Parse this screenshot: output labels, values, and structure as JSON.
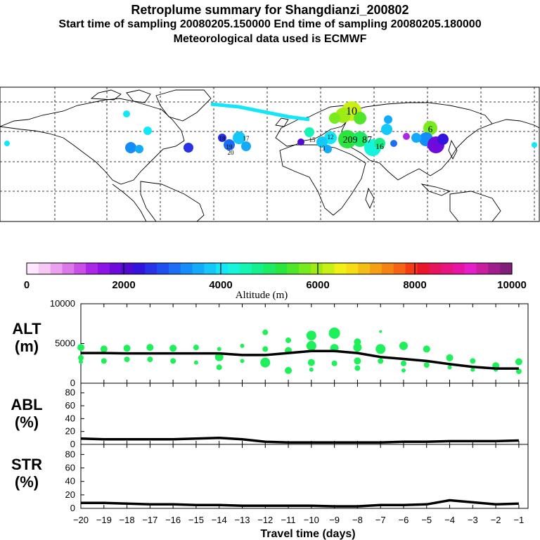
{
  "header": {
    "title": "Retroplume summary for Shangdianzi_200802",
    "sampling": "Start time of sampling 20080205.150000     End time of sampling 20080205.180000",
    "met": "Meteorological data used is ECMWF"
  },
  "colorbar": {
    "label": "Altitude (m)",
    "ticks": [
      "0",
      "2000",
      "4000",
      "6000",
      "8000",
      "10000"
    ],
    "colors": [
      "#ffe8ff",
      "#f5c8f5",
      "#eaa2f0",
      "#dc78ea",
      "#c850e6",
      "#aa28e6",
      "#8c14e6",
      "#6e0adc",
      "#500ad2",
      "#3214dc",
      "#2a32e6",
      "#1e50f0",
      "#1e6ef5",
      "#148cfa",
      "#14aafa",
      "#14c8fa",
      "#14e6fa",
      "#14f5dc",
      "#14f5b4",
      "#14f08c",
      "#1eeb64",
      "#28e63c",
      "#50e628",
      "#78eb1e",
      "#a0eb14",
      "#c8f014",
      "#f0f014",
      "#f5dc14",
      "#f5be14",
      "#f5a014",
      "#f58214",
      "#f56414",
      "#f53c14",
      "#eb1428",
      "#e6145a",
      "#e61480",
      "#e614a5",
      "#e61ec8",
      "#c81ea0",
      "#a01e8c",
      "#801e7a"
    ]
  },
  "map_labels": [
    "10",
    "6",
    "209",
    "87",
    "16",
    "12",
    "15",
    "13",
    "18",
    "20",
    "17",
    "19"
  ],
  "panels": {
    "alt": {
      "label1": "ALT",
      "label2": "(m)",
      "ticks": [
        "10000",
        "5000",
        "0"
      ]
    },
    "abl": {
      "label1": "ABL",
      "label2": "(%)",
      "ticks": [
        "80",
        "60",
        "40",
        "20",
        "0"
      ]
    },
    "str": {
      "label1": "STR",
      "label2": "(%)",
      "ticks": [
        "80",
        "60",
        "40",
        "20",
        "0"
      ]
    }
  },
  "xaxis": {
    "label": "Travel time (days)",
    "ticks": [
      "−20",
      "−19",
      "−18",
      "−17",
      "−16",
      "−15",
      "−14",
      "−13",
      "−12",
      "−11",
      "−10",
      "−9",
      "−8",
      "−7",
      "−6",
      "−5",
      "−4",
      "−3",
      "−2",
      "−1"
    ]
  },
  "chart_data": {
    "type": "line",
    "x": [
      -20,
      -19,
      -18,
      -17,
      -16,
      -15,
      -14,
      -13,
      -12,
      -11,
      -10,
      -9,
      -8,
      -7,
      -6,
      -5,
      -4,
      -3,
      -2,
      -1
    ],
    "alt_line": [
      3800,
      3800,
      3750,
      3750,
      3750,
      3750,
      3750,
      3550,
      3550,
      3800,
      4050,
      4050,
      3800,
      3300,
      3050,
      2800,
      2400,
      2050,
      1850,
      1850
    ],
    "abl_line": [
      9,
      8,
      8,
      8,
      8,
      9,
      10,
      8,
      4,
      3,
      3,
      3,
      3,
      3,
      4,
      4,
      5,
      5,
      5,
      6
    ],
    "str_line": [
      8,
      8,
      7,
      6,
      6,
      5,
      5,
      4,
      4,
      4,
      4,
      3,
      3,
      5,
      5,
      6,
      12,
      9,
      6,
      7
    ],
    "alt_points": [
      [
        -20,
        4500
      ],
      [
        -20,
        3200
      ],
      [
        -20,
        2700
      ],
      [
        -19,
        4300
      ],
      [
        -19,
        2800
      ],
      [
        -18,
        4400
      ],
      [
        -18,
        3000
      ],
      [
        -17,
        4500
      ],
      [
        -17,
        3000
      ],
      [
        -16,
        4400
      ],
      [
        -16,
        2800
      ],
      [
        -15,
        4500
      ],
      [
        -15,
        2600
      ],
      [
        -14,
        4300
      ],
      [
        -14,
        3300
      ],
      [
        -14,
        2000
      ],
      [
        -13,
        4700
      ],
      [
        -13,
        2800
      ],
      [
        -12,
        6400
      ],
      [
        -12,
        4300
      ],
      [
        -12,
        2600
      ],
      [
        -11,
        5400
      ],
      [
        -11,
        4100
      ],
      [
        -11,
        1600
      ],
      [
        -10,
        6000
      ],
      [
        -10,
        4700
      ],
      [
        -10,
        2600
      ],
      [
        -10,
        1700
      ],
      [
        -9,
        6300
      ],
      [
        -9,
        4400
      ],
      [
        -9,
        2500
      ],
      [
        -8,
        5200
      ],
      [
        -8,
        4500
      ],
      [
        -8,
        2800
      ],
      [
        -8,
        1900
      ],
      [
        -7,
        6500
      ],
      [
        -7,
        4300
      ],
      [
        -7,
        2800
      ],
      [
        -6,
        4700
      ],
      [
        -6,
        2500
      ],
      [
        -6,
        1600
      ],
      [
        -5,
        4300
      ],
      [
        -5,
        2300
      ],
      [
        -4,
        3200
      ],
      [
        -4,
        2000
      ],
      [
        -3,
        2800
      ],
      [
        -3,
        1700
      ],
      [
        -2,
        2200
      ],
      [
        -2,
        1700
      ],
      [
        -1,
        2700
      ],
      [
        -1,
        1500
      ]
    ],
    "alt_sizes": [
      5,
      4,
      3,
      5,
      4,
      5,
      4,
      5,
      4,
      5,
      4,
      4,
      3,
      3,
      6,
      4,
      3,
      3,
      4,
      4,
      7,
      4,
      5,
      5,
      7,
      7,
      5,
      3,
      8,
      6,
      4,
      5,
      6,
      5,
      4,
      2,
      7,
      4,
      6,
      4,
      3,
      5,
      4,
      5,
      3,
      4,
      3,
      5,
      3,
      5,
      4
    ],
    "xlim": [
      -20,
      -0.6
    ],
    "alt_ylim": [
      0,
      10000
    ],
    "pct_ylim": [
      0,
      95
    ],
    "xlabel": "Travel time (days)",
    "alt_label": "ALT (m)",
    "abl_label": "ABL (%)",
    "str_label": "STR (%)",
    "point_color": "#1ef05a",
    "line_color": "#000000"
  }
}
